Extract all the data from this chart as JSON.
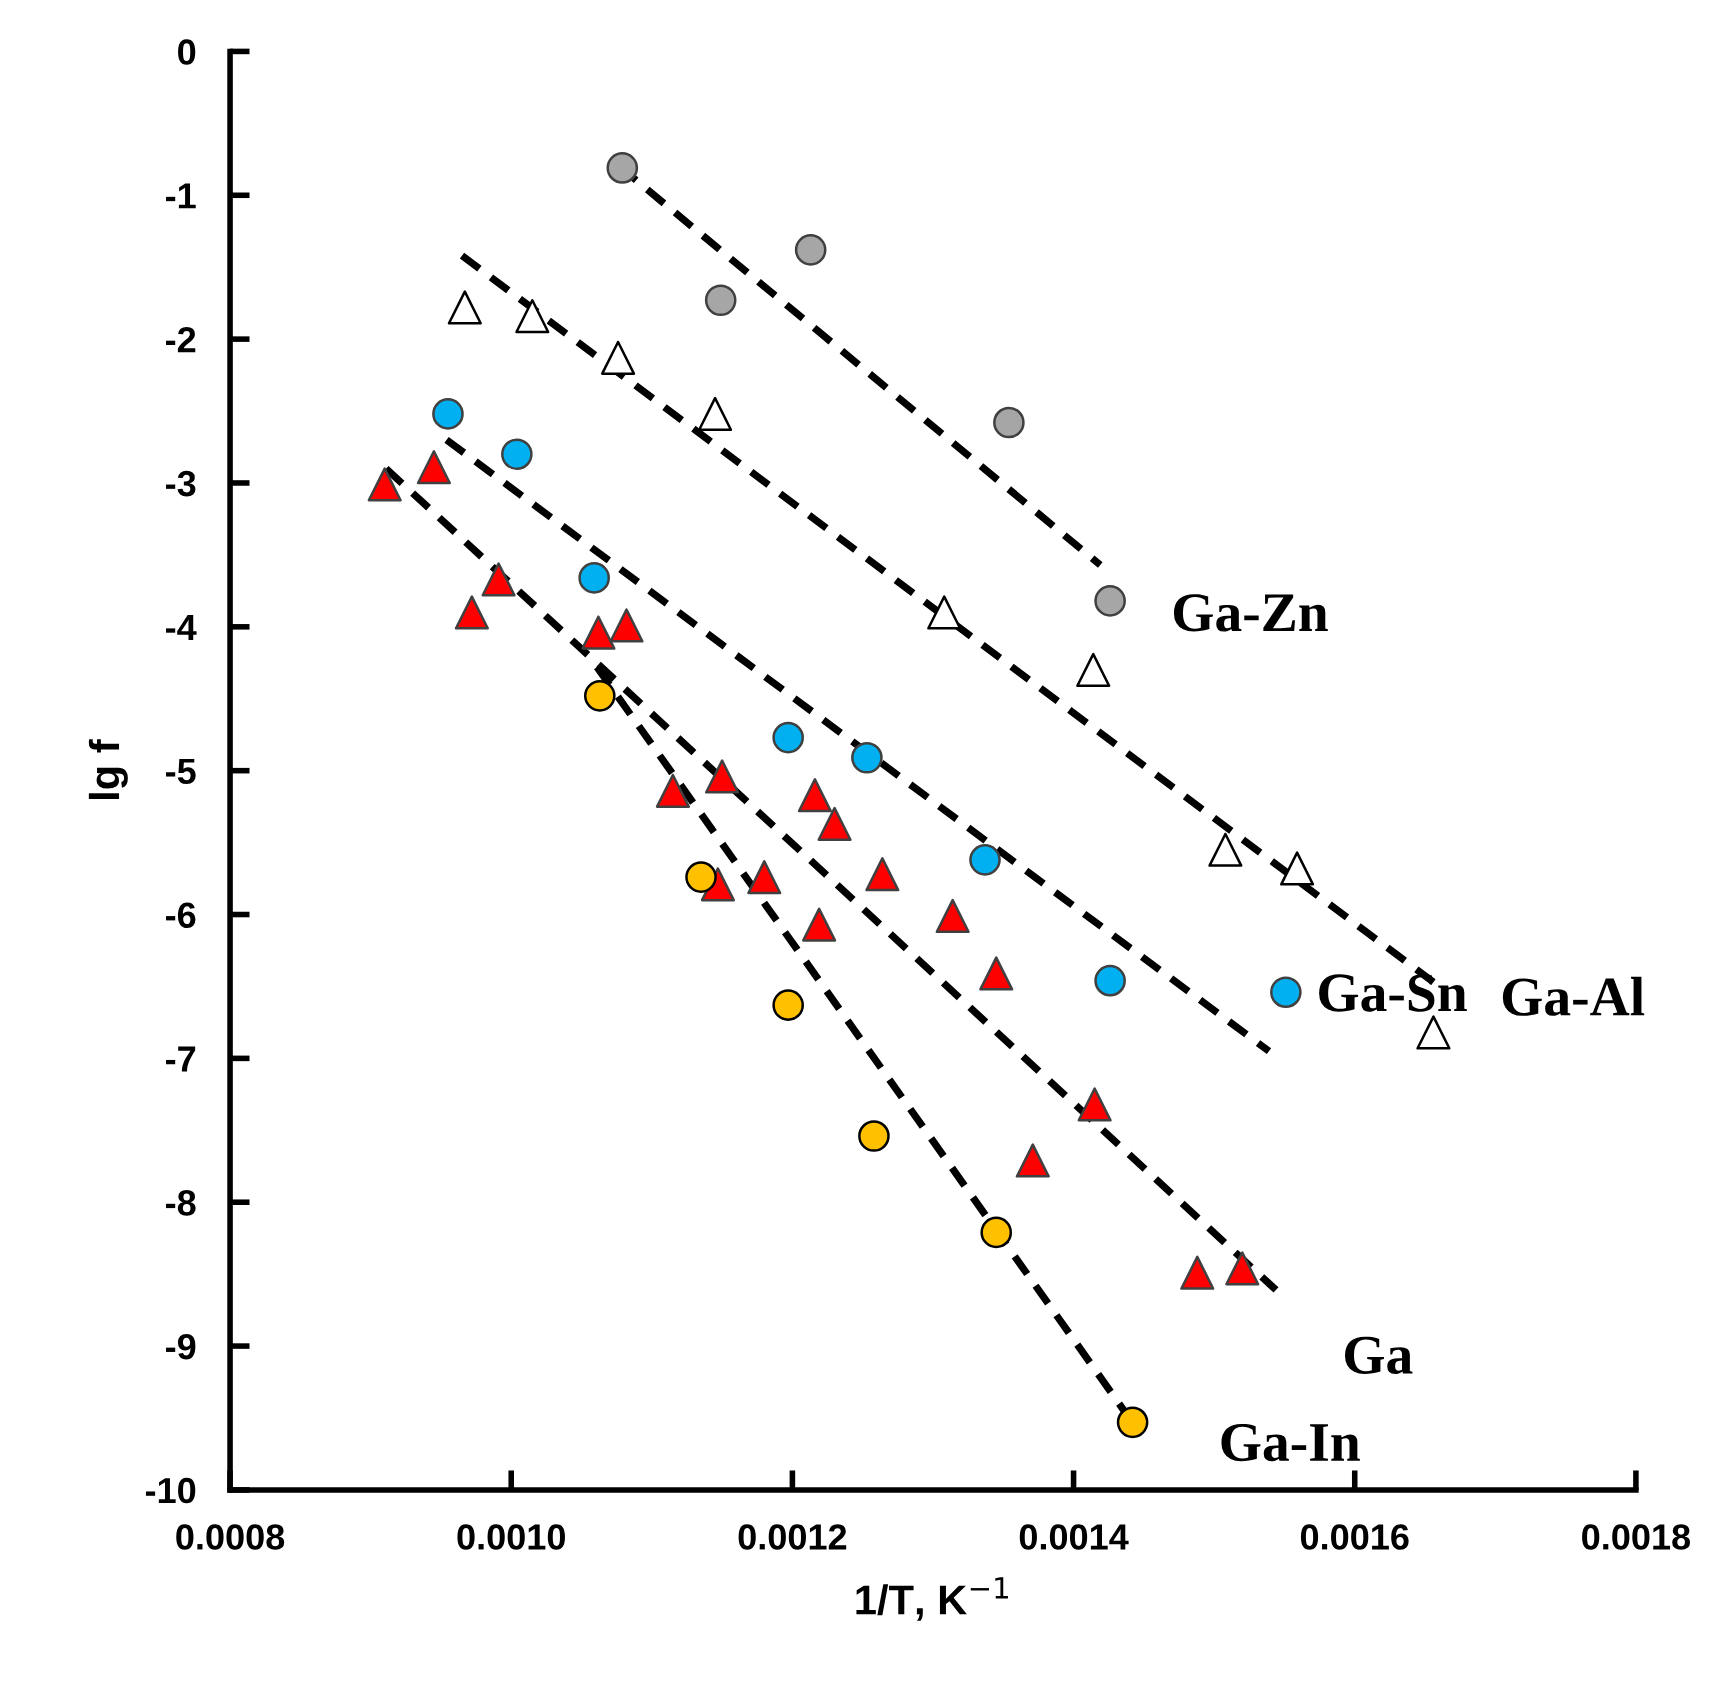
{
  "chart_data": {
    "type": "scatter",
    "xlabel": "1/T, K$^{−1}$",
    "ylabel": "lg f",
    "xlim": [
      0.0008,
      0.0018
    ],
    "ylim": [
      -10,
      0
    ],
    "xticks": [
      0.0008,
      {
        "value": 0.001,
        "label": "0.0010"
      },
      0.0012,
      0.0014,
      0.0016,
      0.0018
    ],
    "yticks": [
      -10,
      -9,
      -8,
      -7,
      -6,
      -5,
      -4,
      -3,
      -2,
      -1,
      0
    ],
    "grid": false,
    "legend": false,
    "series": [
      {
        "name": "Ga-Zn",
        "marker": "circle",
        "color": "#a6a6a6",
        "x": [
          0.001079,
          0.001149,
          0.001213,
          0.001354,
          0.001426
        ],
        "values": [
          -0.81,
          -1.73,
          -1.38,
          -2.58,
          -3.82
        ]
      },
      {
        "name": "Ga-Al",
        "marker": "triangle",
        "color": "#ffffff",
        "x": [
          0.000967,
          0.001015,
          0.001076,
          0.001145,
          0.001308,
          0.001414,
          0.001508,
          0.001559,
          0.001656
        ],
        "values": [
          -1.78,
          -1.84,
          -2.13,
          -2.52,
          -3.9,
          -4.3,
          -5.55,
          -5.68,
          -6.82
        ]
      },
      {
        "name": "Ga-Sn",
        "marker": "circle",
        "color": "#00b0f0",
        "x": [
          0.000955,
          0.001004,
          0.001059,
          0.001197,
          0.001253,
          0.001337,
          0.001426,
          0.001551
        ],
        "values": [
          -2.52,
          -2.8,
          -3.66,
          -4.77,
          -4.91,
          -5.62,
          -6.46,
          -6.54
        ]
      },
      {
        "name": "Ga",
        "marker": "triangle",
        "color": "#ff0000",
        "x": [
          0.00091,
          0.000945,
          0.000972,
          0.000991,
          0.001062,
          0.001082,
          0.001115,
          0.001147,
          0.00115,
          0.00118,
          0.001216,
          0.001219,
          0.00123,
          0.001264,
          0.001314,
          0.001345,
          0.001371,
          0.001415,
          0.001488,
          0.00152
        ],
        "values": [
          -3.01,
          -2.89,
          -3.9,
          -3.67,
          -4.04,
          -3.99,
          -5.14,
          -5.79,
          -5.04,
          -5.74,
          -5.17,
          -6.07,
          -5.37,
          -5.72,
          -6.01,
          -6.41,
          -7.71,
          -7.32,
          -8.49,
          -8.46
        ]
      },
      {
        "name": "Ga-In",
        "marker": "circle",
        "color": "#ffc000",
        "x": [
          0.001063,
          0.001135,
          0.001197,
          0.001258,
          0.001345,
          0.001442
        ],
        "values": [
          -4.48,
          -5.74,
          -6.63,
          -7.54,
          -8.21,
          -9.53
        ]
      },
      {
        "type": "line",
        "line_style": "dashed",
        "color": "#000000",
        "x": [
          0.001077,
          0.001419
        ],
        "values": [
          -0.8,
          -3.57
        ]
      },
      {
        "type": "line",
        "line_style": "dashed",
        "color": "#000000",
        "x": [
          0.000965,
          0.001656
        ],
        "values": [
          -1.42,
          -6.47
        ]
      },
      {
        "type": "line",
        "line_style": "dashed",
        "color": "#000000",
        "x": [
          0.000954,
          0.001539
        ],
        "values": [
          -2.7,
          -6.95
        ]
      },
      {
        "type": "line",
        "line_style": "dashed",
        "color": "#000000",
        "x": [
          0.000911,
          0.001544
        ],
        "values": [
          -2.9,
          -8.61
        ]
      },
      {
        "type": "line",
        "line_style": "dashed",
        "color": "#000000",
        "x": [
          0.001061,
          0.001436
        ],
        "values": [
          -4.28,
          -9.45
        ]
      }
    ]
  }
}
